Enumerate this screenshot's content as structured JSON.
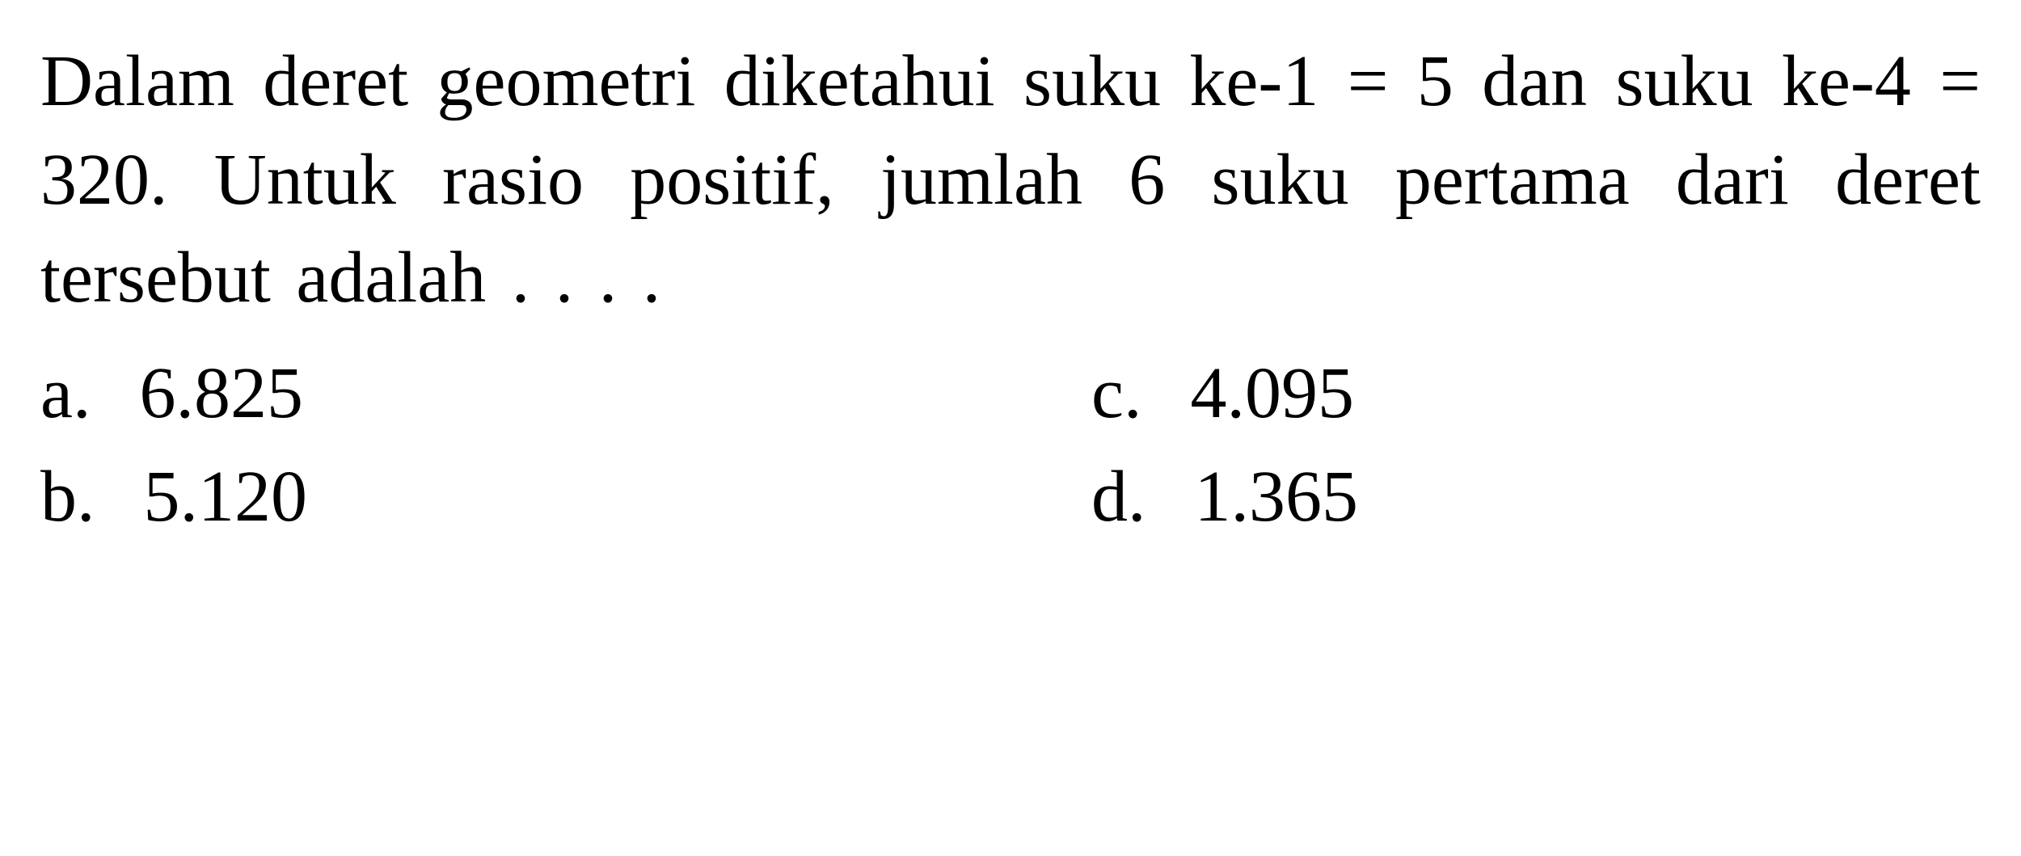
{
  "question": {
    "text": "Dalam deret geometri diketahui suku ke-1 = 5 dan suku ke-4 = 320. Untuk rasio positif, jumlah 6 suku pertama dari deret tersebut adalah . . . .",
    "font_size_pt": 68,
    "font_family": "Times New Roman",
    "color": "#000000"
  },
  "options": [
    {
      "letter": "a.",
      "value": "6.825"
    },
    {
      "letter": "b.",
      "value": "5.120"
    },
    {
      "letter": "c.",
      "value": "4.095"
    },
    {
      "letter": "d.",
      "value": "1.365"
    }
  ],
  "layout": {
    "background_color": "#ffffff",
    "text_color": "#000000",
    "columns": 2,
    "option_order": [
      "a",
      "c",
      "b",
      "d"
    ]
  }
}
